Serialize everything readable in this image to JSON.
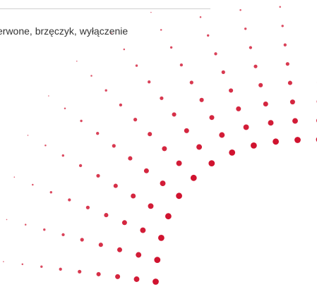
{
  "caption": "erwone, brzęczyk, wyłączenie"
}
